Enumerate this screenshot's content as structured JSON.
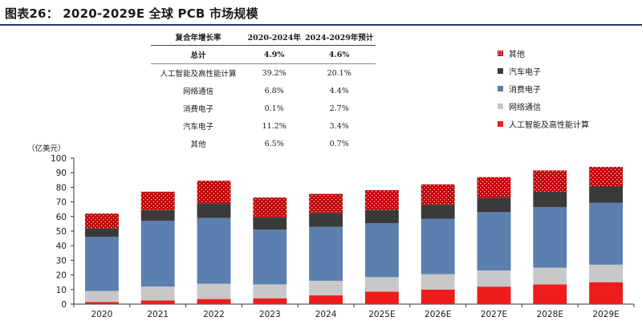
{
  "title": "图表26： 2020-2029E 全球 PCB 市场规模",
  "table": {
    "headers": [
      "复合年增长率",
      "2020-2024年",
      "2024-2029年预计"
    ],
    "rows": [
      {
        "label": "总计",
        "a": "4.9%",
        "b": "4.6%"
      },
      {
        "label": "人工智能及高性能计算",
        "a": "39.2%",
        "b": "20.1%"
      },
      {
        "label": "网络通信",
        "a": "6.8%",
        "b": "4.4%"
      },
      {
        "label": "消费电子",
        "a": "0.1%",
        "b": "2.7%"
      },
      {
        "label": "汽车电子",
        "a": "11.2%",
        "b": "3.4%"
      },
      {
        "label": "其他",
        "a": "6.5%",
        "b": "0.7%"
      }
    ]
  },
  "legend": [
    {
      "name": "其他",
      "color": "#c00000",
      "pattern": "dots"
    },
    {
      "name": "汽车电子",
      "color": "#3a3a3a"
    },
    {
      "name": "消费电子",
      "color": "#5b7fae"
    },
    {
      "name": "网络通信",
      "color": "#c8c8c8"
    },
    {
      "name": "人工智能及高性能计算",
      "color": "#ee1c1c"
    }
  ],
  "chart_data": {
    "type": "bar",
    "stacked": true,
    "unit_label": "（亿美元）",
    "ylim": [
      0,
      100
    ],
    "yticks": [
      0,
      10,
      20,
      30,
      40,
      50,
      60,
      70,
      80,
      90,
      100
    ],
    "categories": [
      "2020",
      "2021",
      "2022",
      "2023",
      "2024",
      "2025E",
      "2026E",
      "2027E",
      "2028E",
      "2029E"
    ],
    "series": [
      {
        "name": "人工智能及高性能计算",
        "color": "#ee1c1c",
        "values": [
          1.5,
          2.5,
          3.5,
          4.0,
          6.0,
          8.5,
          10.0,
          12.0,
          13.5,
          15.0
        ]
      },
      {
        "name": "网络通信",
        "color": "#c8c8c8",
        "values": [
          7.5,
          9.5,
          10.5,
          9.5,
          10.0,
          10.0,
          10.5,
          11.0,
          11.5,
          12.0
        ]
      },
      {
        "name": "消费电子",
        "color": "#5b7fae",
        "values": [
          37.0,
          45.0,
          45.0,
          37.5,
          37.0,
          37.0,
          38.0,
          40.0,
          41.5,
          42.5
        ]
      },
      {
        "name": "汽车电子",
        "color": "#3a3a3a",
        "values": [
          6.0,
          7.5,
          10.0,
          8.5,
          9.5,
          9.0,
          9.5,
          10.0,
          10.5,
          11.0
        ]
      },
      {
        "name": "其他",
        "color": "#c00000",
        "values": [
          10.0,
          12.5,
          15.5,
          13.5,
          13.0,
          13.5,
          14.0,
          14.0,
          14.5,
          13.5
        ]
      }
    ]
  }
}
